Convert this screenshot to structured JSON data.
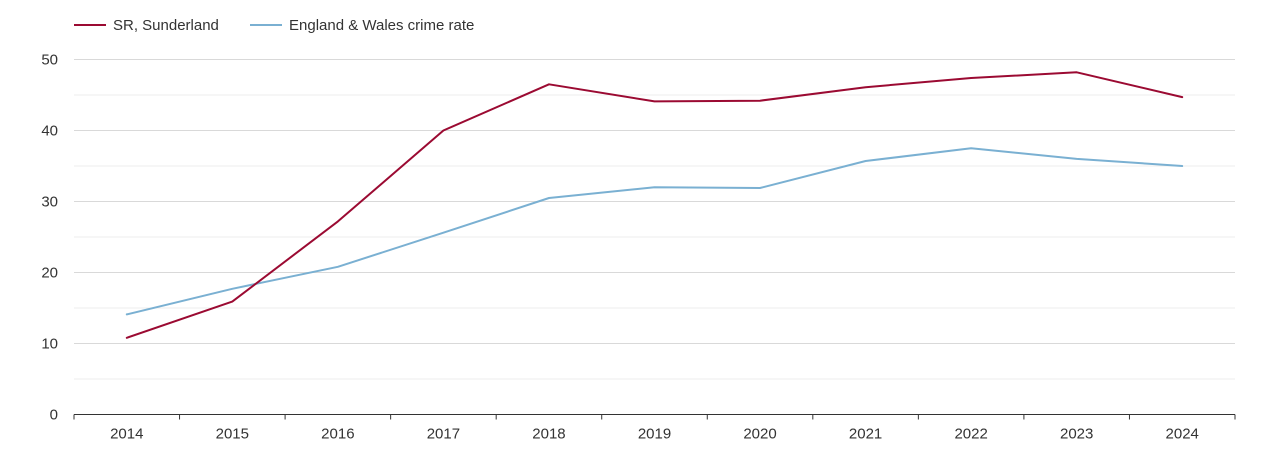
{
  "chart_data": {
    "type": "line",
    "title": "",
    "xlabel": "",
    "ylabel": "",
    "categories": [
      "2014",
      "2015",
      "2016",
      "2017",
      "2018",
      "2019",
      "2020",
      "2021",
      "2022",
      "2023",
      "2024"
    ],
    "ylim": [
      0,
      50
    ],
    "yticks": [
      0,
      10,
      20,
      30,
      40,
      50
    ],
    "grid": true,
    "legend_position": "top-left",
    "series": [
      {
        "name": "SR, Sunderland",
        "color": "#9b0a32",
        "values": [
          10.8,
          15.9,
          27.2,
          40.0,
          46.5,
          44.1,
          44.2,
          46.1,
          47.4,
          48.2,
          44.7
        ]
      },
      {
        "name": "England & Wales crime rate",
        "color": "#7ab0d2",
        "values": [
          14.1,
          17.7,
          20.8,
          25.6,
          30.5,
          32.0,
          31.9,
          35.7,
          37.5,
          36.0,
          35.0
        ]
      }
    ]
  }
}
